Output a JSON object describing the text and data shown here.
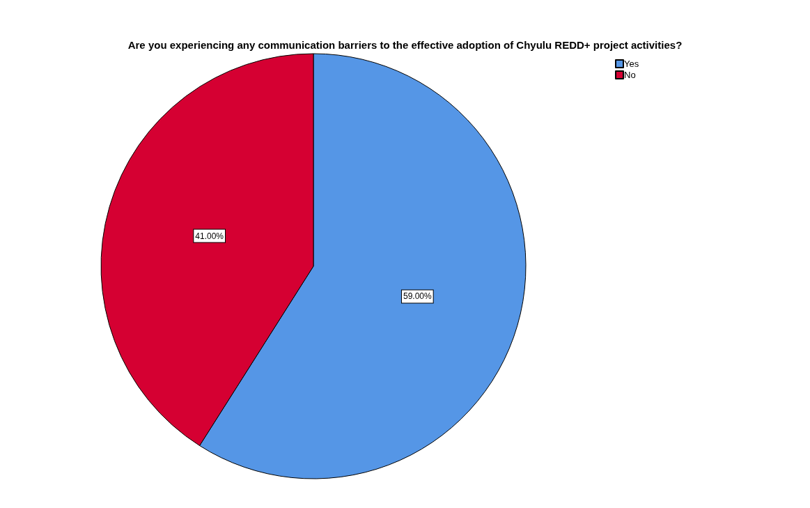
{
  "chart_data": {
    "type": "pie",
    "title": "Are you experiencing any communication barriers to the effective adoption of Chyulu REDD+ project activities?",
    "categories": [
      "Yes",
      "No"
    ],
    "values": [
      59,
      41
    ],
    "colors": [
      "#5596e6",
      "#d50032"
    ],
    "value_labels": [
      "59.00%",
      "41.00%"
    ],
    "legend": "top right"
  }
}
